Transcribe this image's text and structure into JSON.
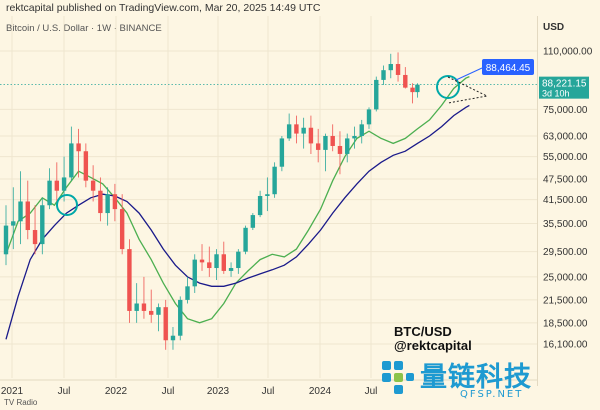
{
  "header": {
    "publish_line": "rektcapital published on TradingView.com, Mar 20, 2025 14:49 UTC",
    "symbol_line": "Bitcoin / U.S. Dollar · 1W · BINANCE",
    "currency": "USD"
  },
  "overlay": {
    "pair": "BTC/USD",
    "handle": "@rektcapital"
  },
  "watermark": {
    "text": "量链科技",
    "url": "QFSP.NET"
  },
  "footer": {
    "text": "TV Radio"
  },
  "chart_data": {
    "type": "candlestick",
    "scale": "log",
    "y_ticks": [
      "110,000.00",
      "88,221.15",
      "75,000.00",
      "63,000.00",
      "55,000.00",
      "47,500.00",
      "41,500.00",
      "35,500.00",
      "29,500.00",
      "25,000.00",
      "21,500.00",
      "18,500.00",
      "16,100.00"
    ],
    "x_ticks": [
      "2021",
      "Jul",
      "2022",
      "Jul",
      "2023",
      "Jul",
      "2024",
      "Jul"
    ],
    "price_callout": "88,464.45",
    "current_price": "88,221.15",
    "countdown": "3d 10h",
    "colors": {
      "up": "#26a69a",
      "down": "#ef5350",
      "fast_ma": "#4caf50",
      "slow_ma": "#1a1a8a",
      "callout": "#2962ff",
      "circle": "#00a8a8"
    },
    "series": [
      {
        "kind": "fast_ma",
        "points": [
          [
            0,
            29000
          ],
          [
            10,
            36000
          ],
          [
            20,
            38000
          ],
          [
            30,
            42000
          ],
          [
            40,
            40000
          ],
          [
            50,
            45000
          ],
          [
            60,
            50000
          ],
          [
            70,
            48000
          ],
          [
            80,
            46000
          ],
          [
            90,
            42000
          ],
          [
            100,
            38000
          ],
          [
            110,
            32000
          ],
          [
            120,
            28000
          ],
          [
            130,
            24000
          ],
          [
            140,
            21000
          ],
          [
            150,
            19000
          ],
          [
            160,
            18500
          ],
          [
            170,
            19000
          ],
          [
            180,
            21000
          ],
          [
            190,
            24000
          ],
          [
            200,
            26000
          ],
          [
            210,
            28000
          ],
          [
            220,
            29000
          ],
          [
            230,
            28500
          ],
          [
            240,
            30000
          ],
          [
            250,
            34000
          ],
          [
            260,
            39000
          ],
          [
            270,
            47000
          ],
          [
            280,
            55000
          ],
          [
            290,
            62000
          ],
          [
            300,
            65000
          ],
          [
            310,
            62000
          ],
          [
            320,
            60000
          ],
          [
            330,
            62000
          ],
          [
            340,
            66000
          ],
          [
            350,
            70000
          ],
          [
            360,
            77000
          ],
          [
            370,
            86000
          ],
          [
            380,
            92000
          ],
          [
            383,
            93000
          ]
        ]
      },
      {
        "kind": "slow_ma",
        "points": [
          [
            0,
            16600
          ],
          [
            10,
            22000
          ],
          [
            20,
            28000
          ],
          [
            30,
            32000
          ],
          [
            40,
            35000
          ],
          [
            50,
            38000
          ],
          [
            60,
            40000
          ],
          [
            70,
            42000
          ],
          [
            80,
            43000
          ],
          [
            90,
            42500
          ],
          [
            100,
            41000
          ],
          [
            110,
            38000
          ],
          [
            120,
            34000
          ],
          [
            130,
            30000
          ],
          [
            140,
            27000
          ],
          [
            150,
            25000
          ],
          [
            160,
            24000
          ],
          [
            170,
            23500
          ],
          [
            180,
            23500
          ],
          [
            190,
            24000
          ],
          [
            200,
            24800
          ],
          [
            210,
            25500
          ],
          [
            220,
            26200
          ],
          [
            230,
            27000
          ],
          [
            240,
            28500
          ],
          [
            250,
            31000
          ],
          [
            260,
            34000
          ],
          [
            270,
            38000
          ],
          [
            280,
            42000
          ],
          [
            290,
            46000
          ],
          [
            300,
            50000
          ],
          [
            310,
            53000
          ],
          [
            320,
            55500
          ],
          [
            330,
            57000
          ],
          [
            340,
            60000
          ],
          [
            350,
            63000
          ],
          [
            360,
            67000
          ],
          [
            370,
            72000
          ],
          [
            380,
            76000
          ],
          [
            383,
            77000
          ]
        ]
      }
    ],
    "candles": [
      [
        0,
        29000,
        40000,
        27000,
        35000
      ],
      [
        6,
        35000,
        45000,
        30000,
        36000
      ],
      [
        12,
        36000,
        50000,
        31000,
        41000
      ],
      [
        18,
        41000,
        47000,
        32000,
        34000
      ],
      [
        24,
        34000,
        40000,
        29000,
        31000
      ],
      [
        30,
        31000,
        42000,
        29000,
        40000
      ],
      [
        36,
        40000,
        51000,
        39000,
        47000
      ],
      [
        42,
        47000,
        53000,
        40000,
        44000
      ],
      [
        48,
        44000,
        55000,
        41000,
        48000
      ],
      [
        54,
        48000,
        67000,
        47000,
        60000
      ],
      [
        60,
        60000,
        66000,
        48000,
        57000
      ],
      [
        66,
        57000,
        60000,
        45000,
        47000
      ],
      [
        72,
        47000,
        52000,
        41000,
        44000
      ],
      [
        78,
        44000,
        48000,
        36000,
        38000
      ],
      [
        84,
        38000,
        45000,
        35000,
        43000
      ],
      [
        90,
        43000,
        46000,
        36000,
        39000
      ],
      [
        96,
        39000,
        43000,
        29000,
        30000
      ],
      [
        102,
        30000,
        32000,
        18500,
        20000
      ],
      [
        108,
        20000,
        24000,
        18500,
        21000
      ],
      [
        114,
        21000,
        25000,
        19000,
        20000
      ],
      [
        120,
        20000,
        23000,
        18500,
        19500
      ],
      [
        126,
        19500,
        21000,
        17500,
        20500
      ],
      [
        132,
        20500,
        21500,
        15500,
        16500
      ],
      [
        138,
        16500,
        18000,
        15500,
        17000
      ],
      [
        144,
        17000,
        22000,
        16500,
        21500
      ],
      [
        150,
        21500,
        25000,
        21000,
        23500
      ],
      [
        156,
        23500,
        29000,
        22500,
        28000
      ],
      [
        162,
        28000,
        31000,
        26000,
        27500
      ],
      [
        168,
        27500,
        30500,
        25000,
        26500
      ],
      [
        174,
        26500,
        30000,
        24500,
        29000
      ],
      [
        180,
        29000,
        31500,
        25500,
        26000
      ],
      [
        186,
        26000,
        27500,
        25000,
        26500
      ],
      [
        192,
        26500,
        30000,
        25500,
        29500
      ],
      [
        198,
        29500,
        35000,
        29000,
        34500
      ],
      [
        204,
        34500,
        38000,
        34000,
        37500
      ],
      [
        210,
        37500,
        44000,
        37000,
        42500
      ],
      [
        216,
        42500,
        48000,
        38500,
        43000
      ],
      [
        222,
        43000,
        53000,
        42000,
        51500
      ],
      [
        228,
        51500,
        63000,
        50000,
        62000
      ],
      [
        234,
        62000,
        73000,
        61000,
        68000
      ],
      [
        240,
        68000,
        72000,
        60000,
        64000
      ],
      [
        246,
        64000,
        71000,
        58000,
        66500
      ],
      [
        252,
        66500,
        72000,
        56000,
        60000
      ],
      [
        258,
        60000,
        66000,
        53000,
        57500
      ],
      [
        264,
        57500,
        64000,
        50000,
        63000
      ],
      [
        270,
        63000,
        68000,
        57000,
        59000
      ],
      [
        276,
        59000,
        65000,
        49000,
        56000
      ],
      [
        282,
        56000,
        64000,
        53000,
        62000
      ],
      [
        288,
        62000,
        67000,
        58000,
        63000
      ],
      [
        294,
        63000,
        70000,
        60000,
        68000
      ],
      [
        300,
        68000,
        76000,
        66000,
        75000
      ],
      [
        306,
        75000,
        93000,
        74000,
        91000
      ],
      [
        312,
        91000,
        100000,
        88000,
        97000
      ],
      [
        318,
        97000,
        108000,
        92000,
        101000
      ],
      [
        324,
        101000,
        109000,
        90000,
        94000
      ],
      [
        330,
        94000,
        99000,
        86000,
        86500
      ],
      [
        336,
        86500,
        89000,
        78000,
        84000
      ],
      [
        340,
        84000,
        89000,
        81000,
        88221
      ]
    ]
  }
}
